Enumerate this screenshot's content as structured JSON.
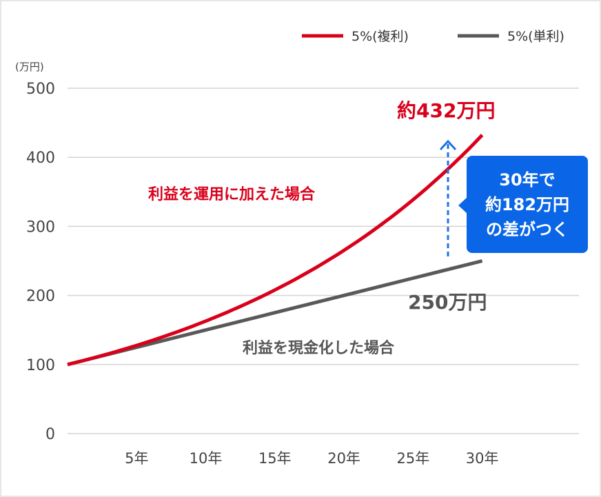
{
  "chart_data": {
    "type": "line",
    "unit_label": "(万円)",
    "yticks": [
      0,
      100,
      200,
      300,
      400,
      500
    ],
    "ylim": [
      0,
      500
    ],
    "xlim": [
      0,
      37
    ],
    "xticks": [
      {
        "value": 5,
        "label": "5年"
      },
      {
        "value": 10,
        "label": "10年"
      },
      {
        "value": 15,
        "label": "15年"
      },
      {
        "value": 20,
        "label": "20年"
      },
      {
        "value": 25,
        "label": "25年"
      },
      {
        "value": 30,
        "label": "30年"
      }
    ],
    "grid": true,
    "legend_position": "top-right",
    "series": [
      {
        "name": "5%(複利)",
        "color": "#d9001b",
        "x": [
          0,
          5,
          10,
          15,
          20,
          25,
          30
        ],
        "values": [
          100,
          127.6,
          162.9,
          207.9,
          265.3,
          338.6,
          432.2
        ]
      },
      {
        "name": "5%(単利)",
        "color": "#595959",
        "x": [
          0,
          5,
          10,
          15,
          20,
          25,
          30
        ],
        "values": [
          100,
          125,
          150,
          175,
          200,
          225,
          250
        ]
      }
    ],
    "annotations": {
      "compound_label": "利益を運用に加えた場合",
      "compound_value": "約432万円",
      "simple_label": "利益を現金化した場合",
      "simple_value": "250万円",
      "callout_lines": [
        "30年で",
        "約182万円",
        "の差がつく"
      ]
    }
  }
}
